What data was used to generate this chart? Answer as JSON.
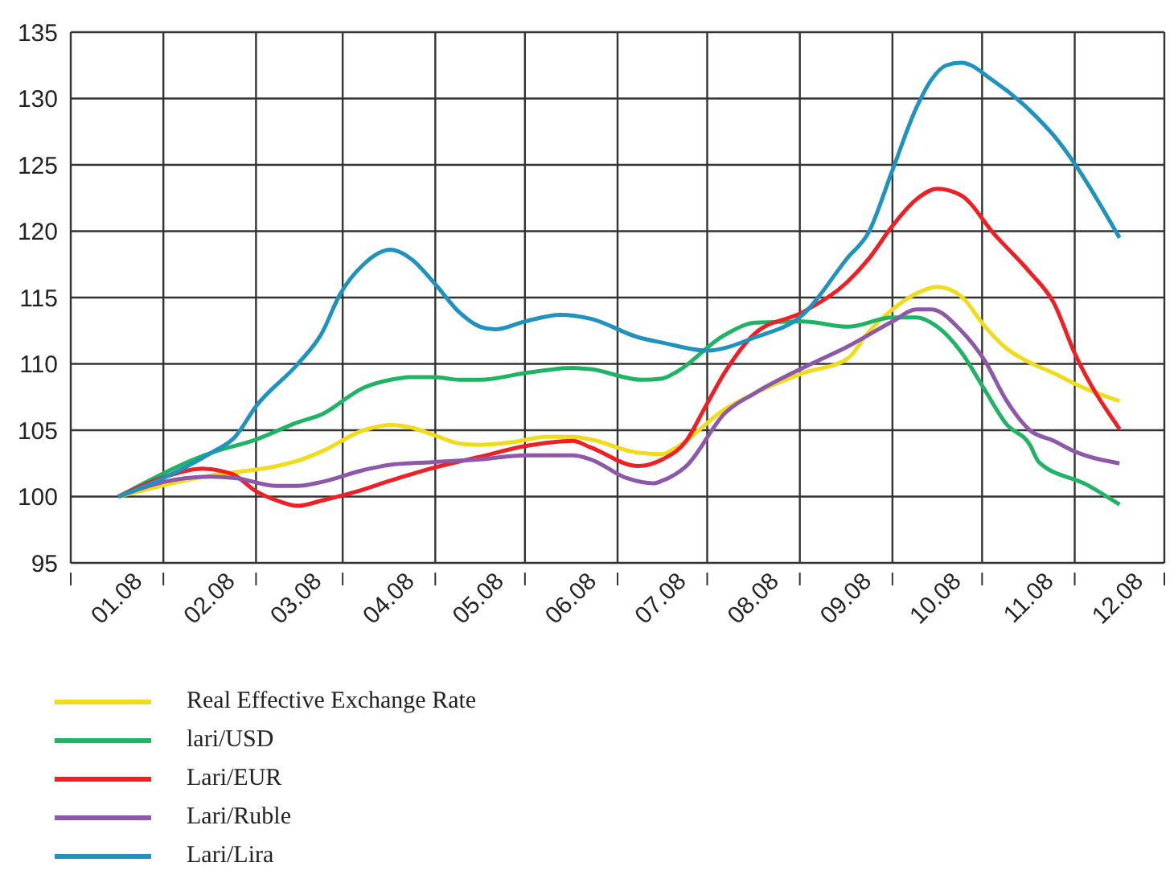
{
  "chart_data": {
    "type": "line",
    "xlim": [
      "2007-12-16",
      "2008-12-16"
    ],
    "ylim": [
      95,
      135
    ],
    "yticks": [
      95,
      100,
      105,
      110,
      115,
      120,
      125,
      130,
      135
    ],
    "xticks": [
      {
        "value": "2007-12-16",
        "label": null
      },
      {
        "value": "2008-01-01",
        "label": "01.08"
      },
      {
        "value": "2008-01-16",
        "label": null
      },
      {
        "value": "2008-02-01",
        "label": "02.08"
      },
      {
        "value": "2008-02-16",
        "label": null
      },
      {
        "value": "2008-03-01",
        "label": "03.08"
      },
      {
        "value": "2008-03-16",
        "label": null
      },
      {
        "value": "2008-04-01",
        "label": "04.08"
      },
      {
        "value": "2008-04-16",
        "label": null
      },
      {
        "value": "2008-05-01",
        "label": "05.08"
      },
      {
        "value": "2008-05-16",
        "label": null
      },
      {
        "value": "2008-06-01",
        "label": "06.08"
      },
      {
        "value": "2008-06-16",
        "label": null
      },
      {
        "value": "2008-07-01",
        "label": "07.08"
      },
      {
        "value": "2008-07-16",
        "label": null
      },
      {
        "value": "2008-08-01",
        "label": "08.08"
      },
      {
        "value": "2008-08-16",
        "label": null
      },
      {
        "value": "2008-09-01",
        "label": "09.08"
      },
      {
        "value": "2008-09-16",
        "label": null
      },
      {
        "value": "2008-10-01",
        "label": "10.08"
      },
      {
        "value": "2008-10-16",
        "label": null
      },
      {
        "value": "2008-11-01",
        "label": "11.08"
      },
      {
        "value": "2008-11-16",
        "label": null
      },
      {
        "value": "2008-12-01",
        "label": "12.08"
      },
      {
        "value": "2008-12-16",
        "label": null
      }
    ],
    "grid": true,
    "legend": "bottom",
    "marker": "none",
    "line_style": "solid",
    "series": [
      {
        "name": "Real Effective Exchange Rate",
        "color": "#f0dc1a",
        "x": [
          "2008-01-01",
          "2008-02-01",
          "2008-02-23",
          "2008-03-01",
          "2008-03-09",
          "2008-03-23",
          "2008-04-01",
          "2008-04-08",
          "2008-04-16",
          "2008-04-24",
          "2008-05-01",
          "2008-05-12",
          "2008-05-23",
          "2008-06-01",
          "2008-06-07",
          "2008-06-23",
          "2008-07-01",
          "2008-07-05",
          "2008-07-22",
          "2008-08-01",
          "2008-08-17",
          "2008-09-01",
          "2008-09-08",
          "2008-09-16",
          "2008-09-24",
          "2008-10-01",
          "2008-10-09",
          "2008-10-17",
          "2008-10-24",
          "2008-11-01",
          "2008-11-09",
          "2008-11-17",
          "2008-12-01"
        ],
        "values": [
          100,
          101.6,
          102.3,
          102.7,
          103.4,
          105,
          105.4,
          105.2,
          104.6,
          104,
          103.9,
          104.1,
          104.5,
          104.5,
          104.3,
          103.3,
          103.2,
          103.6,
          106.6,
          107.8,
          109.3,
          110.4,
          112.4,
          114.1,
          115.3,
          115.8,
          115.1,
          112.8,
          111.2,
          110.1,
          109.3,
          108.4,
          107.2
        ]
      },
      {
        "name": "lari/USD",
        "color": "#1fb464",
        "x": [
          "2008-01-01",
          "2008-02-01",
          "2008-02-16",
          "2008-03-01",
          "2008-03-09",
          "2008-03-23",
          "2008-04-01",
          "2008-04-08",
          "2008-04-16",
          "2008-04-24",
          "2008-05-01",
          "2008-05-16",
          "2008-06-01",
          "2008-06-07",
          "2008-06-24",
          "2008-07-01",
          "2008-07-05",
          "2008-07-22",
          "2008-08-01",
          "2008-08-17",
          "2008-09-01",
          "2008-09-16",
          "2008-09-24",
          "2008-10-01",
          "2008-10-09",
          "2008-10-17",
          "2008-10-24",
          "2008-11-01",
          "2008-11-04",
          "2008-11-20",
          "2008-12-01"
        ],
        "values": [
          100,
          103.3,
          104.3,
          105.6,
          106.2,
          108.2,
          108.8,
          109,
          109,
          108.8,
          108.8,
          109.3,
          109.7,
          109.6,
          108.8,
          108.9,
          109.3,
          112.2,
          113.1,
          113.2,
          112.8,
          113.5,
          113.5,
          112.8,
          110.9,
          108,
          105.5,
          103.9,
          102.6,
          100.9,
          99.4
        ]
      },
      {
        "name": "Lari/EUR",
        "color": "#ee2026",
        "x": [
          "2008-01-01",
          "2008-01-18",
          "2008-01-29",
          "2008-02-08",
          "2008-02-16",
          "2008-02-23",
          "2008-03-01",
          "2008-03-09",
          "2008-03-21",
          "2008-04-01",
          "2008-04-16",
          "2008-05-01",
          "2008-05-16",
          "2008-06-01",
          "2008-06-07",
          "2008-06-23",
          "2008-07-01",
          "2008-07-09",
          "2008-07-15",
          "2008-07-22",
          "2008-08-01",
          "2008-08-17",
          "2008-09-01",
          "2008-09-08",
          "2008-09-16",
          "2008-09-24",
          "2008-10-01",
          "2008-10-09",
          "2008-10-20",
          "2008-11-01",
          "2008-11-09",
          "2008-11-16",
          "2008-12-01"
        ],
        "values": [
          100,
          101.6,
          102.1,
          101.7,
          100.4,
          99.7,
          99.3,
          99.7,
          100.4,
          101.2,
          102.2,
          103,
          103.8,
          104.2,
          103.7,
          102.3,
          102.8,
          104.2,
          106.6,
          109.4,
          112.3,
          113.9,
          116.2,
          117.9,
          120.4,
          122.4,
          123.2,
          122.7,
          119.8,
          116.9,
          114.6,
          110.8,
          105.1
        ]
      },
      {
        "name": "Lari/Ruble",
        "color": "#8e58a8",
        "x": [
          "2008-01-01",
          "2008-01-16",
          "2008-02-01",
          "2008-02-09",
          "2008-02-23",
          "2008-03-01",
          "2008-03-09",
          "2008-03-23",
          "2008-04-01",
          "2008-04-16",
          "2008-05-01",
          "2008-05-16",
          "2008-06-01",
          "2008-06-07",
          "2008-06-19",
          "2008-06-28",
          "2008-07-01",
          "2008-07-09",
          "2008-07-22",
          "2008-08-01",
          "2008-08-17",
          "2008-09-01",
          "2008-09-16",
          "2008-09-24",
          "2008-09-29",
          "2008-10-09",
          "2008-10-17",
          "2008-10-24",
          "2008-11-01",
          "2008-11-09",
          "2008-11-16",
          "2008-12-01"
        ],
        "values": [
          100,
          101.1,
          101.5,
          101.4,
          100.8,
          100.8,
          101.1,
          102,
          102.4,
          102.6,
          102.8,
          103.1,
          103.1,
          102.8,
          101.4,
          101,
          101.2,
          102.3,
          106.3,
          107.8,
          109.7,
          111.3,
          113.2,
          114.1,
          114.1,
          112.5,
          110.2,
          107.3,
          105,
          104.2,
          103.4,
          102.5
        ]
      },
      {
        "name": "Lari/Lira",
        "color": "#1f93bd",
        "x": [
          "2008-01-01",
          "2008-01-16",
          "2008-02-01",
          "2008-02-09",
          "2008-02-16",
          "2008-03-01",
          "2008-03-09",
          "2008-03-15",
          "2008-03-23",
          "2008-04-01",
          "2008-04-08",
          "2008-04-16",
          "2008-04-24",
          "2008-05-01",
          "2008-05-06",
          "2008-05-16",
          "2008-05-28",
          "2008-06-07",
          "2008-06-23",
          "2008-07-01",
          "2008-07-16",
          "2008-08-01",
          "2008-08-17",
          "2008-09-01",
          "2008-09-08",
          "2008-09-16",
          "2008-09-24",
          "2008-09-29",
          "2008-10-04",
          "2008-10-09",
          "2008-10-20",
          "2008-11-01",
          "2008-11-09",
          "2008-12-01"
        ],
        "values": [
          100,
          101.4,
          103.3,
          104.5,
          106.8,
          110,
          112.3,
          115.2,
          117.5,
          118.6,
          117.9,
          116,
          113.9,
          112.8,
          112.6,
          113.2,
          113.7,
          113.4,
          112,
          111.6,
          111,
          112,
          113.7,
          118,
          119.9,
          124.6,
          129.3,
          131.4,
          132.5,
          132.7,
          131.3,
          129.1,
          127.2,
          119.5
        ]
      }
    ]
  }
}
